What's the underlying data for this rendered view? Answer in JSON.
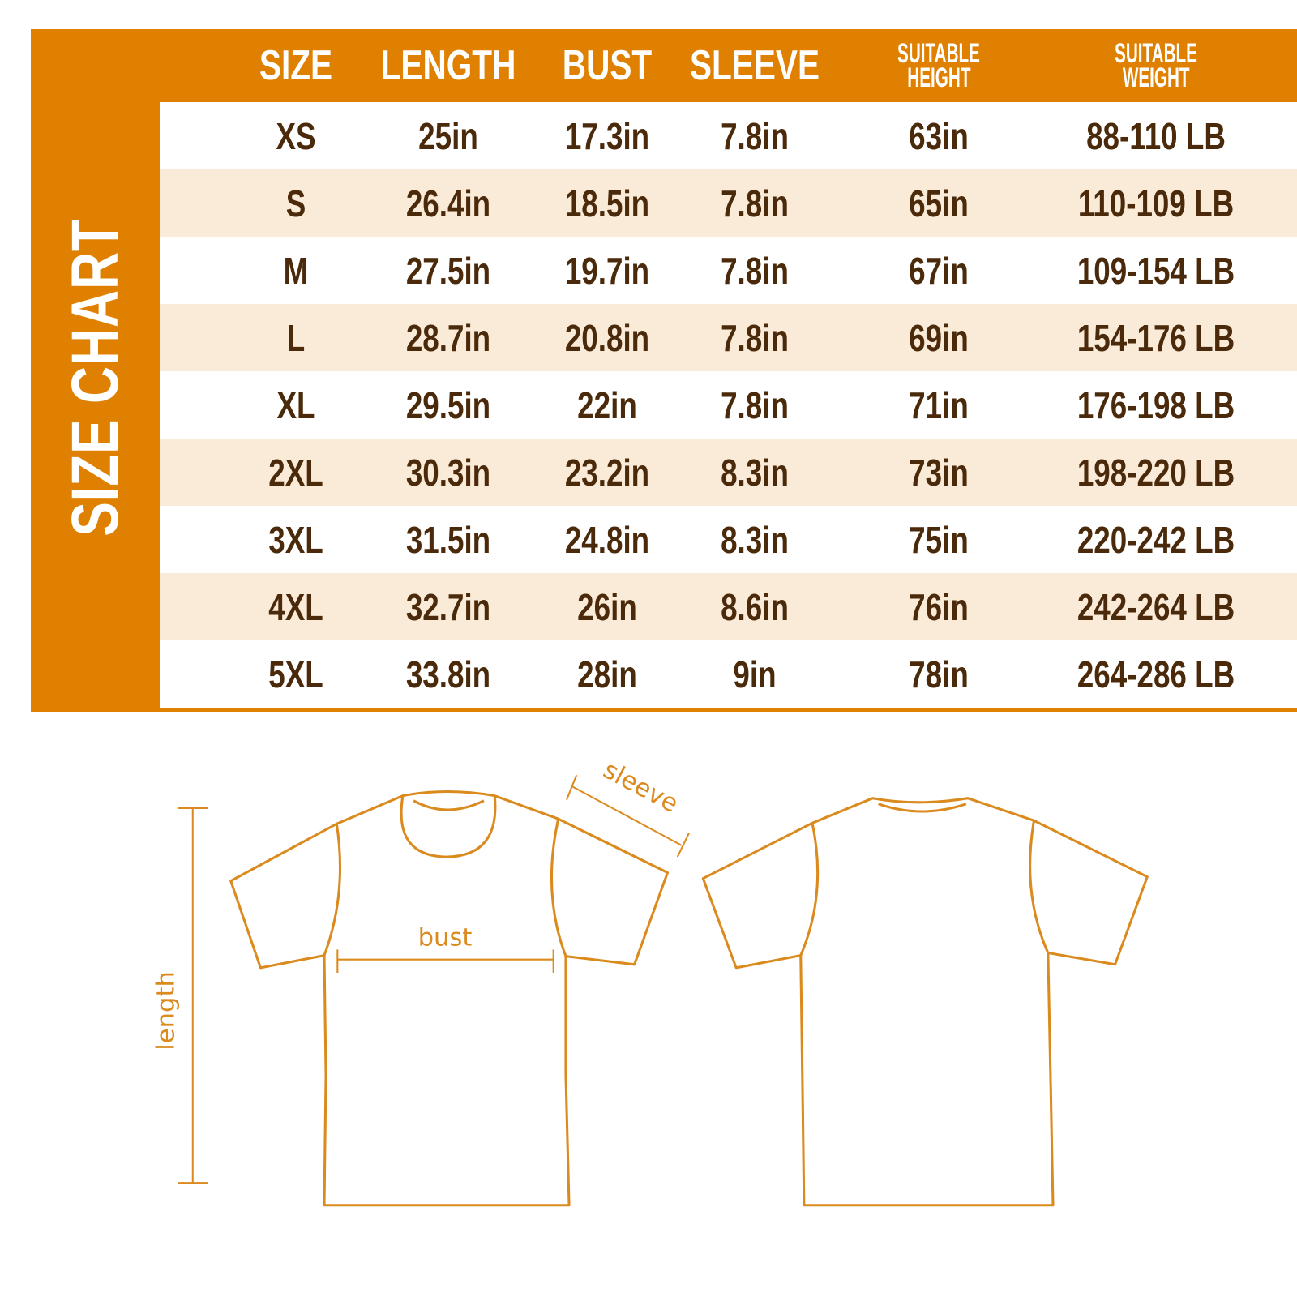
{
  "title": "SIZE CHART",
  "headers": {
    "size": "SIZE",
    "length": "LENGTH",
    "bust": "BUST",
    "sleeve": "SLEEVE",
    "height_1": "SUITABLE",
    "height_2": "HEIGHT",
    "weight_1": "SUITABLE",
    "weight_2": "WEIGHT"
  },
  "rows": [
    {
      "size": "XS",
      "length": "25in",
      "bust": "17.3in",
      "sleeve": "7.8in",
      "height": "63in",
      "weight": "88-110 LB"
    },
    {
      "size": "S",
      "length": "26.4in",
      "bust": "18.5in",
      "sleeve": "7.8in",
      "height": "65in",
      "weight": "110-109 LB"
    },
    {
      "size": "M",
      "length": "27.5in",
      "bust": "19.7in",
      "sleeve": "7.8in",
      "height": "67in",
      "weight": "109-154 LB"
    },
    {
      "size": "L",
      "length": "28.7in",
      "bust": "20.8in",
      "sleeve": "7.8in",
      "height": "69in",
      "weight": "154-176 LB"
    },
    {
      "size": "XL",
      "length": "29.5in",
      "bust": "22in",
      "sleeve": "7.8in",
      "height": "71in",
      "weight": "176-198 LB"
    },
    {
      "size": "2XL",
      "length": "30.3in",
      "bust": "23.2in",
      "sleeve": "8.3in",
      "height": "73in",
      "weight": "198-220 LB"
    },
    {
      "size": "3XL",
      "length": "31.5in",
      "bust": "24.8in",
      "sleeve": "8.3in",
      "height": "75in",
      "weight": "220-242 LB"
    },
    {
      "size": "4XL",
      "length": "32.7in",
      "bust": "26in",
      "sleeve": "8.6in",
      "height": "76in",
      "weight": "242-264 LB"
    },
    {
      "size": "5XL",
      "length": "33.8in",
      "bust": "28in",
      "sleeve": "9in",
      "height": "78in",
      "weight": "264-286 LB"
    }
  ],
  "diagram": {
    "sleeve": "sleeve",
    "bust": "bust",
    "length": "length"
  },
  "colors": {
    "orange": "#E08000",
    "stripe": "#FAEAD8",
    "text": "#4A2A0A",
    "outline": "#DB8A1E"
  }
}
